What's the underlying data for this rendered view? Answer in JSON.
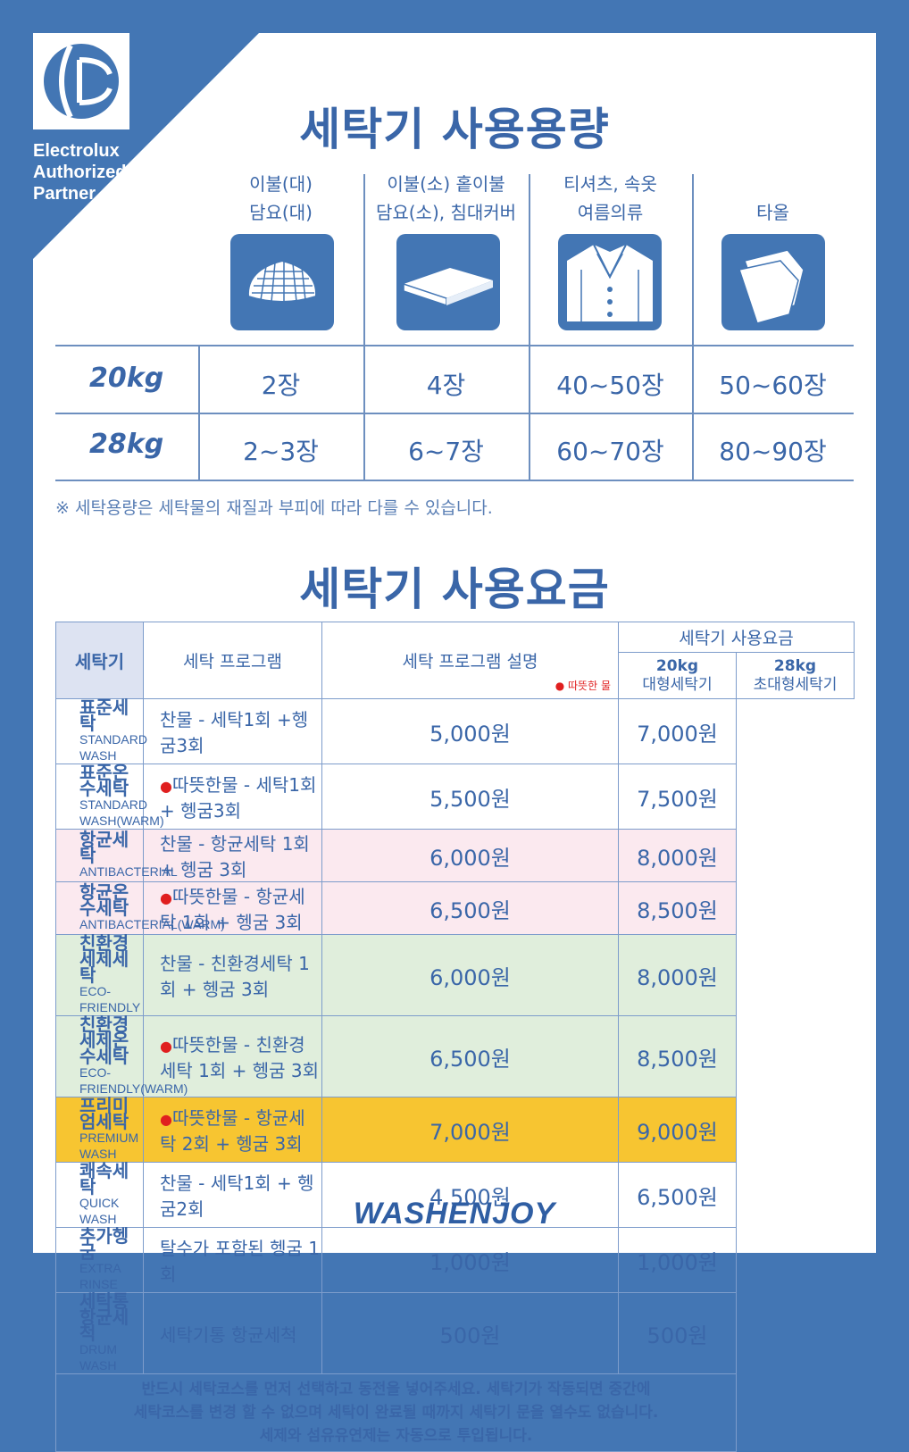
{
  "brand": {
    "lines": "Electrolux\nAuthorized\nPartner"
  },
  "capacity": {
    "title": "세탁기 사용용량",
    "columns": [
      {
        "line1": "이불(대)",
        "line2": "담요(대)",
        "icon": "blanket-icon"
      },
      {
        "line1": "이불(소) 홑이불",
        "line2": "담요(소), 침대커버",
        "icon": "folded-sheet-icon"
      },
      {
        "line1": "티셔츠, 속옷",
        "line2": "여름의류",
        "icon": "shirt-icon"
      },
      {
        "line1": "",
        "line2": "타올",
        "icon": "towel-icon"
      }
    ],
    "rows": [
      {
        "label": "20kg",
        "values": [
          "2장",
          "4장",
          "40~50장",
          "50~60장"
        ]
      },
      {
        "label": "28kg",
        "values": [
          "2~3장",
          "6~7장",
          "60~70장",
          "80~90장"
        ]
      }
    ],
    "note": "※ 세탁용량은 세탁물의 재질과 부피에 따라 다를 수 있습니다."
  },
  "pricing": {
    "title": "세탁기 사용요금",
    "side_label": "세탁기",
    "headers": {
      "program": "세탁 프로그램",
      "description": "세탁 프로그램 설명",
      "warm_legend": "따뜻한 물",
      "fee": "세탁기 사용요금",
      "col20_a": "20kg",
      "col20_b": "대형세탁기",
      "col28_a": "28kg",
      "col28_b": "초대형세탁기"
    },
    "rows": [
      {
        "ko": "표준세탁",
        "en": "STANDARD WASH",
        "desc": "찬물 - 세탁1회 +헹굼3회",
        "warm": false,
        "p20": "5,000원",
        "p28": "7,000원",
        "tone": ""
      },
      {
        "ko": "표준온수세탁",
        "en": "STANDARD WASH(WARM)",
        "desc": "따뜻한물 - 세탁1회 + 헹굼3회",
        "warm": true,
        "p20": "5,500원",
        "p28": "7,500원",
        "tone": ""
      },
      {
        "ko": "항균세탁",
        "en": "ANTIBACTERIAL",
        "desc": "찬물 - 항균세탁 1회 + 헹굼 3회",
        "warm": false,
        "p20": "6,000원",
        "p28": "8,000원",
        "tone": "pink"
      },
      {
        "ko": "항균온수세탁",
        "en": "ANTIBACTERIAL(WARM)",
        "desc": "따뜻한물 - 항균세탁 1회 + 헹굼 3회",
        "warm": true,
        "p20": "6,500원",
        "p28": "8,500원",
        "tone": "pink"
      },
      {
        "ko": "친환경세제세탁",
        "en": "ECO-FRIENDLY",
        "desc": "찬물 - 친환경세탁 1회 + 헹굼 3회",
        "warm": false,
        "p20": "6,000원",
        "p28": "8,000원",
        "tone": "green"
      },
      {
        "ko": "친환경세제온수세탁",
        "en": "ECO-FRIENDLY(WARM)",
        "desc": "따뜻한물 - 친환경세탁 1회 + 헹굼 3회",
        "warm": true,
        "p20": "6,500원",
        "p28": "8,500원",
        "tone": "green"
      },
      {
        "ko": "프리미엄세탁",
        "en": "PREMIUM WASH",
        "desc": "따뜻한물 - 항균세탁 2회 + 헹굼 3회",
        "warm": true,
        "p20": "7,000원",
        "p28": "9,000원",
        "tone": "yellow"
      },
      {
        "ko": "쾌속세탁",
        "en": "QUICK WASH",
        "desc": "찬물 - 세탁1회 + 헹굼2회",
        "warm": false,
        "p20": "4,500원",
        "p28": "6,500원",
        "tone": ""
      },
      {
        "ko": "추가헹굼",
        "en": "EXTRA RINSE",
        "desc": "탈수가 포함된 헹굼 1회",
        "warm": false,
        "p20": "1,000원",
        "p28": "1,000원",
        "tone": ""
      },
      {
        "ko": "세탁통항균세척",
        "en": "DRUM WASH",
        "desc": "세탁기통 항균세척",
        "warm": false,
        "p20": "500원",
        "p28": "500원",
        "tone": ""
      }
    ],
    "bottom_note": "반드시 세탁코스를 먼저 선택하고 동전을 넣어주세요. 세탁기가 작동되면 중간에\n세탁코스를 변경 할 수 없으며 세탁이 완료될 때까지 세탁기 문을 열수도 없습니다.\n세제와 섬유유연제는 자동으로 투입됩니다."
  },
  "footer": {
    "logo_text": "WASHENJOY"
  },
  "colors": {
    "frame": "#4376b4",
    "text": "#3a66a8",
    "pink": "#fbe9ef",
    "green": "#e0eedc",
    "yellow": "#f7c531",
    "warm_dot": "#e01f1f"
  }
}
